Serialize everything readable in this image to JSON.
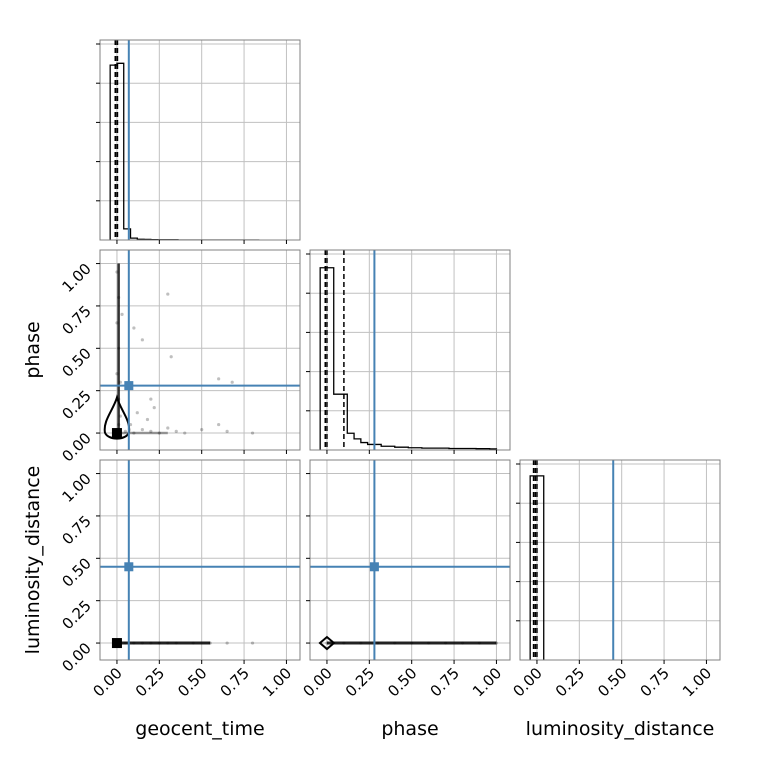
{
  "chart_data": {
    "type": "corner",
    "parameters": [
      "geocent_time",
      "phase",
      "luminosity_distance"
    ],
    "axis_range": [
      -0.1,
      1.08
    ],
    "tick_values": [
      0,
      0.25,
      0.5,
      0.75,
      1.0
    ],
    "tick_labels": [
      "0.00",
      "0.25",
      "0.50",
      "0.75",
      "1.00"
    ],
    "grid": true,
    "colors": {
      "truth": "#4682b4",
      "data": "#000000",
      "grid": "#c0c0c0",
      "frame": "#808080"
    },
    "truths": {
      "geocent_time": 0.07,
      "phase": 0.28,
      "luminosity_distance": 0.45
    },
    "histograms": {
      "geocent_time": {
        "bin_edges": [
          -0.04,
          0.0,
          0.04,
          0.08,
          0.12,
          0.16,
          0.2,
          0.24,
          0.28,
          0.32,
          0.36,
          0.4,
          0.44,
          0.48,
          0.52,
          0.56,
          0.6,
          0.64,
          0.68,
          0.72,
          0.76,
          0.8,
          0.84
        ],
        "counts": [
          0.94,
          0.95,
          0.06,
          0.01,
          0.004,
          0.003,
          0.002,
          0.001,
          0.001,
          0.001,
          0,
          0,
          0,
          0,
          0,
          0,
          0,
          0,
          0,
          0,
          0,
          0
        ],
        "quantiles": [
          -0.01,
          0.0,
          0.003
        ]
      },
      "phase": {
        "bin_edges": [
          -0.04,
          0.0,
          0.04,
          0.08,
          0.12,
          0.16,
          0.2,
          0.24,
          0.28,
          0.32,
          0.36,
          0.4,
          0.44,
          0.48,
          0.52,
          0.56,
          0.6,
          0.64,
          0.68,
          0.72,
          0.76,
          0.8,
          0.84,
          0.88,
          0.92,
          0.96,
          1.0
        ],
        "counts": [
          0.98,
          0.98,
          0.3,
          0.3,
          0.09,
          0.06,
          0.04,
          0.03,
          0.03,
          0.02,
          0.02,
          0.015,
          0.015,
          0.012,
          0.012,
          0.01,
          0.01,
          0.01,
          0.01,
          0.008,
          0.008,
          0.008,
          0.008,
          0.007,
          0.007,
          0.006
        ],
        "quantiles": [
          -0.01,
          0.0,
          0.1
        ]
      },
      "luminosity_distance": {
        "bin_edges": [
          -0.04,
          0.0,
          0.04
        ],
        "counts": [
          0.99,
          0.99
        ],
        "quantiles": [
          -0.02,
          -0.01,
          0.0
        ]
      }
    },
    "scatter": {
      "phase_vs_geocent_time": {
        "points": [
          [
            0.0,
            0.02
          ],
          [
            0.01,
            0.05
          ],
          [
            0.02,
            0.1
          ],
          [
            0.01,
            0.2
          ],
          [
            0.0,
            0.35
          ],
          [
            0.01,
            0.5
          ],
          [
            0.0,
            0.65
          ],
          [
            0.01,
            0.8
          ],
          [
            0.0,
            0.95
          ],
          [
            0.02,
            0.3
          ],
          [
            0.03,
            0.7
          ],
          [
            0.05,
            0.01
          ],
          [
            0.1,
            0.0
          ],
          [
            0.15,
            0.02
          ],
          [
            0.2,
            0.01
          ],
          [
            0.25,
            0.0
          ],
          [
            0.3,
            0.03
          ],
          [
            0.35,
            0.01
          ],
          [
            0.4,
            0.0
          ],
          [
            0.5,
            0.02
          ],
          [
            0.6,
            0.05
          ],
          [
            0.65,
            0.01
          ],
          [
            0.8,
            0.0
          ],
          [
            0.12,
            0.12
          ],
          [
            0.18,
            0.08
          ],
          [
            0.22,
            0.15
          ],
          [
            0.08,
            0.05
          ],
          [
            0.3,
            0.82
          ],
          [
            0.6,
            0.32
          ],
          [
            0.68,
            0.3
          ],
          [
            0.32,
            0.45
          ],
          [
            0.15,
            0.55
          ],
          [
            0.1,
            0.62
          ],
          [
            0.2,
            0.2
          ]
        ],
        "contour_center": [
          0.0,
          0.05
        ],
        "best": [
          0.0,
          0.0
        ]
      },
      "luminosity_distance_vs_geocent_time": {
        "points": [
          [
            0.0,
            0.0
          ],
          [
            0.05,
            0.0
          ],
          [
            0.1,
            0.0
          ],
          [
            0.15,
            0.0
          ],
          [
            0.2,
            0.0
          ],
          [
            0.25,
            0.0
          ],
          [
            0.3,
            0.0
          ],
          [
            0.35,
            0.0
          ],
          [
            0.45,
            0.0
          ],
          [
            0.55,
            0.0
          ],
          [
            0.65,
            0.0
          ],
          [
            0.8,
            0.0
          ]
        ],
        "best": [
          0.0,
          0.0
        ]
      },
      "luminosity_distance_vs_phase": {
        "points": [
          [
            0.0,
            0.0
          ],
          [
            0.1,
            0.0
          ],
          [
            0.2,
            0.0
          ],
          [
            0.3,
            0.0
          ],
          [
            0.4,
            0.0
          ],
          [
            0.5,
            0.0
          ],
          [
            0.6,
            0.0
          ],
          [
            0.7,
            0.0
          ],
          [
            0.8,
            0.0
          ],
          [
            0.9,
            0.0
          ],
          [
            1.0,
            0.0
          ]
        ],
        "contour_center": [
          0.0,
          0.0
        ],
        "best": [
          0.0,
          0.0
        ]
      }
    }
  }
}
